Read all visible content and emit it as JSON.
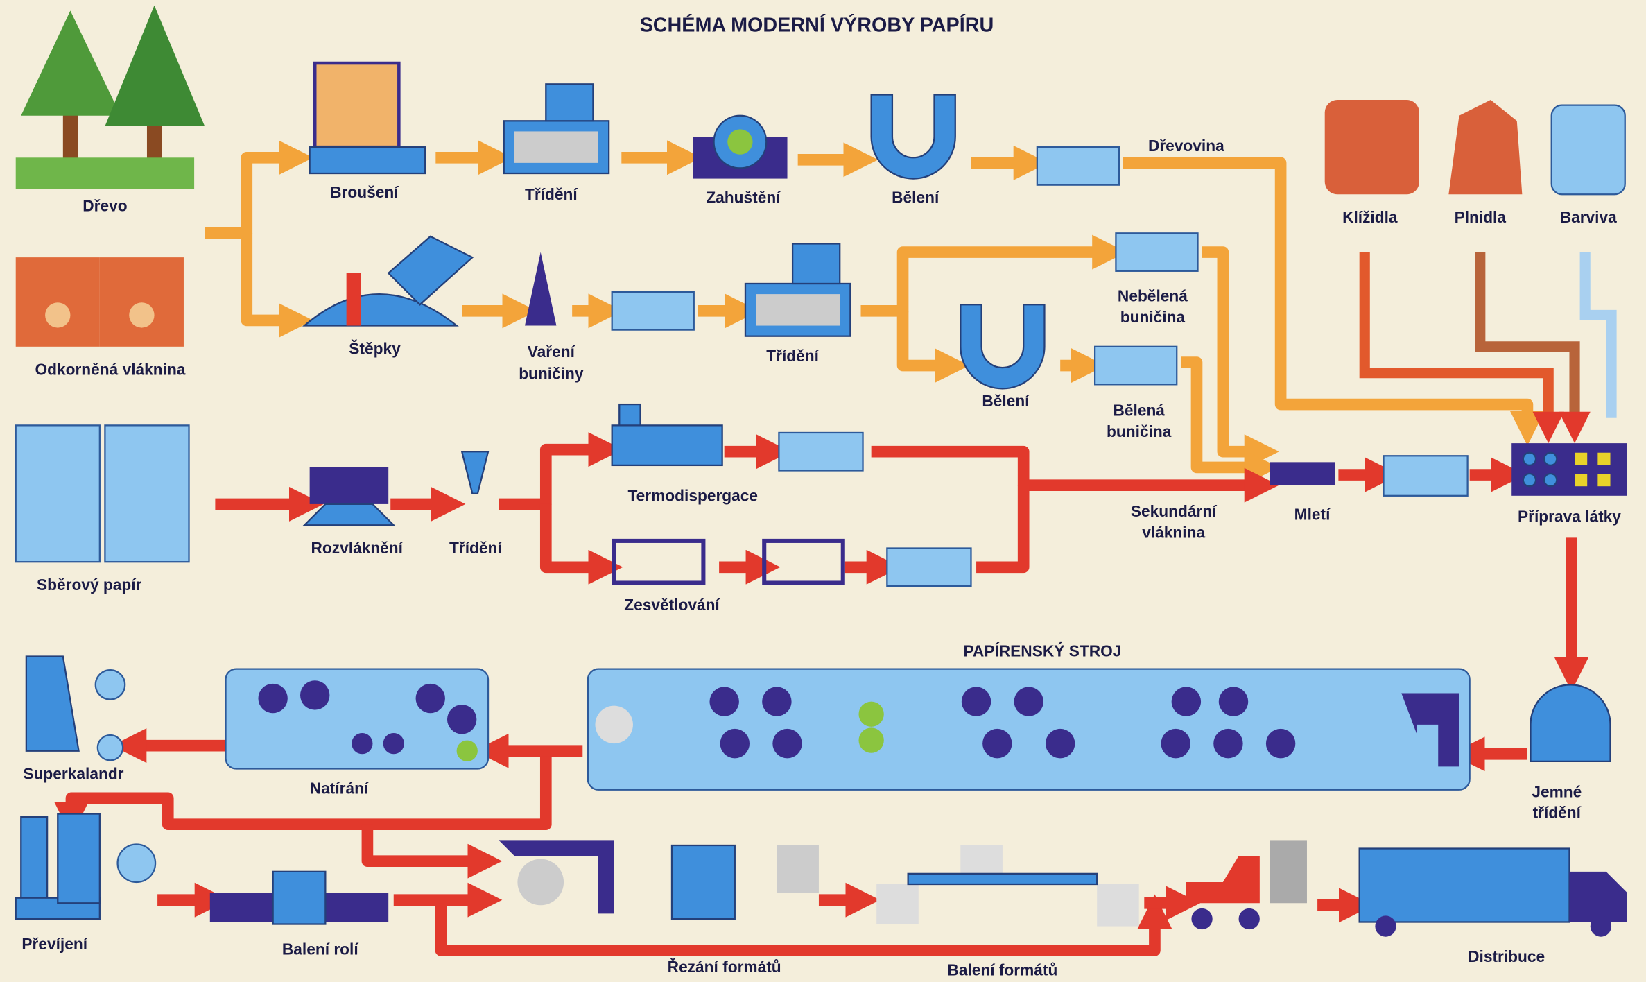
{
  "title": "SCHÉMA MODERNÍ VÝROBY PAPÍRU",
  "nodes": [
    {
      "label": "Dřevo"
    },
    {
      "label": "Odkorněná vláknina"
    },
    {
      "label": "Broušení"
    },
    {
      "label": "Třídění"
    },
    {
      "label": "Zahuštění"
    },
    {
      "label": "Bělení"
    },
    {
      "label": "Dřevovina"
    },
    {
      "label": "Klížidla"
    },
    {
      "label": "Plnidla"
    },
    {
      "label": "Barviva"
    },
    {
      "label": "Štěpky"
    },
    {
      "lines": [
        "Vaření",
        "buničiny"
      ]
    },
    {
      "label": "Třídění"
    },
    {
      "lines": [
        "Nebělená",
        "buničina"
      ]
    },
    {
      "label": "Bělení"
    },
    {
      "lines": [
        "Bělená",
        "buničina"
      ]
    },
    {
      "label": "Sběrový papír"
    },
    {
      "label": "Rozvláknění"
    },
    {
      "label": "Třídění"
    },
    {
      "label": "Termodispergace"
    },
    {
      "label": "Zesvětlování"
    },
    {
      "lines": [
        "Sekundární",
        "vláknina"
      ]
    },
    {
      "label": "Mletí"
    },
    {
      "label": "Příprava látky"
    },
    {
      "label": "PAPÍRENSKÝ STROJ"
    },
    {
      "lines": [
        "Jemné",
        "třídění"
      ]
    },
    {
      "label": "Natírání"
    },
    {
      "label": "Superkalandr"
    },
    {
      "label": "Převíjení"
    },
    {
      "label": "Balení rolí"
    },
    {
      "label": "Řezání formátů"
    },
    {
      "label": "Balení formátů"
    },
    {
      "label": "Distribuce"
    }
  ]
}
